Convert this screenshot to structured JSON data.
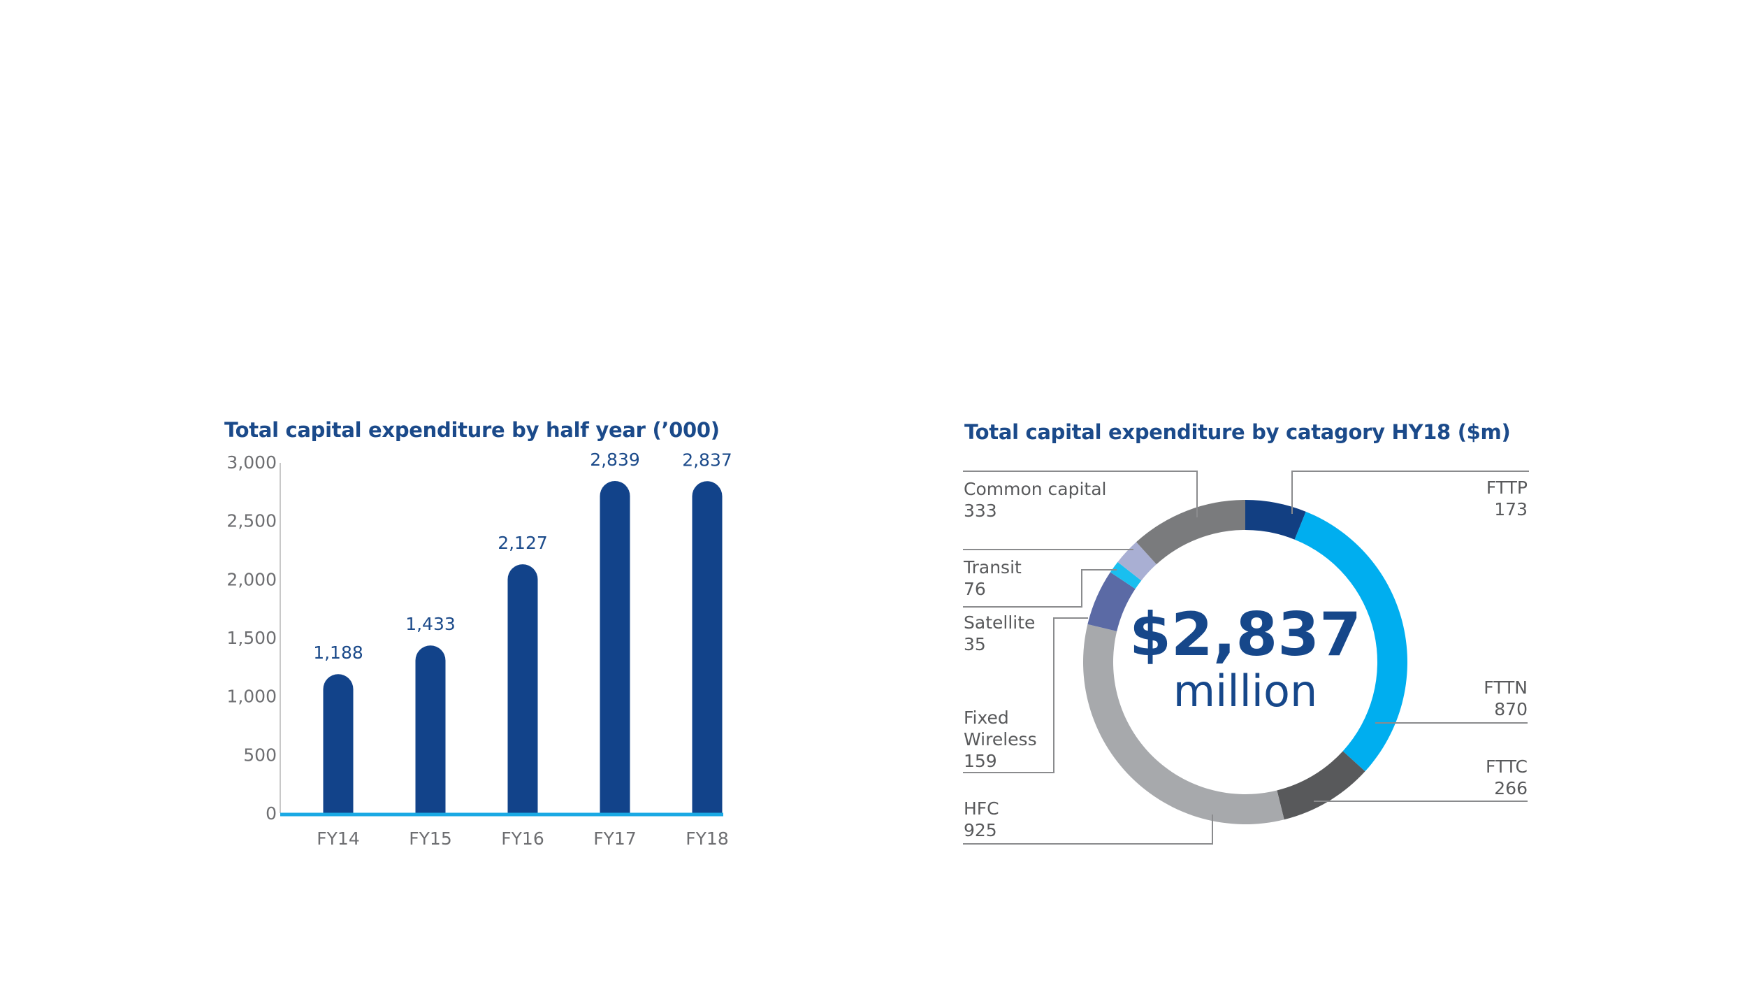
{
  "chart_data": [
    {
      "type": "bar",
      "title": "Total capital expenditure by half year (’000)",
      "xlabel": "",
      "ylabel": "",
      "categories": [
        "FY14",
        "FY15",
        "FY16",
        "FY17",
        "FY18"
      ],
      "values": [
        1188,
        1433,
        2127,
        2839,
        2837
      ],
      "value_labels": [
        "1,188",
        "1,433",
        "2,127",
        "2,839",
        "2,837"
      ],
      "ylim": [
        0,
        3000
      ],
      "yticks": [
        0,
        500,
        1000,
        1500,
        2000,
        2500,
        3000
      ],
      "ytick_labels": [
        "0",
        "500",
        "1,000",
        "1,500",
        "2,000",
        "2,500",
        "3,000"
      ],
      "grid": false,
      "colors": {
        "bar": "#12438a",
        "baseline": "#1aa9e4",
        "axis": "#c8c8c8"
      }
    },
    {
      "type": "pie",
      "subtype": "donut",
      "title": "Total capital expenditure by catagory HY18 ($m)",
      "center_value": "$2,837",
      "center_unit": "million",
      "total": 2837,
      "slices": [
        {
          "name": "FTTP",
          "value": 173,
          "color": "#123f82",
          "side": "right"
        },
        {
          "name": "FTTN",
          "value": 870,
          "color": "#00aeef",
          "side": "right"
        },
        {
          "name": "FTTC",
          "value": 266,
          "color": "#58595b",
          "side": "right"
        },
        {
          "name": "HFC",
          "value": 925,
          "color": "#a7a9ac",
          "side": "left"
        },
        {
          "name": "Fixed Wireless",
          "value": 159,
          "color": "#5b6aa5",
          "side": "left"
        },
        {
          "name": "Satellite",
          "value": 35,
          "color": "#19bfef",
          "side": "left"
        },
        {
          "name": "Transit",
          "value": 76,
          "color": "#a9afd3",
          "side": "left"
        },
        {
          "name": "Common capital",
          "value": 333,
          "color": "#7a7b7d",
          "side": "left"
        }
      ],
      "start": "top",
      "direction": "clockwise"
    }
  ]
}
